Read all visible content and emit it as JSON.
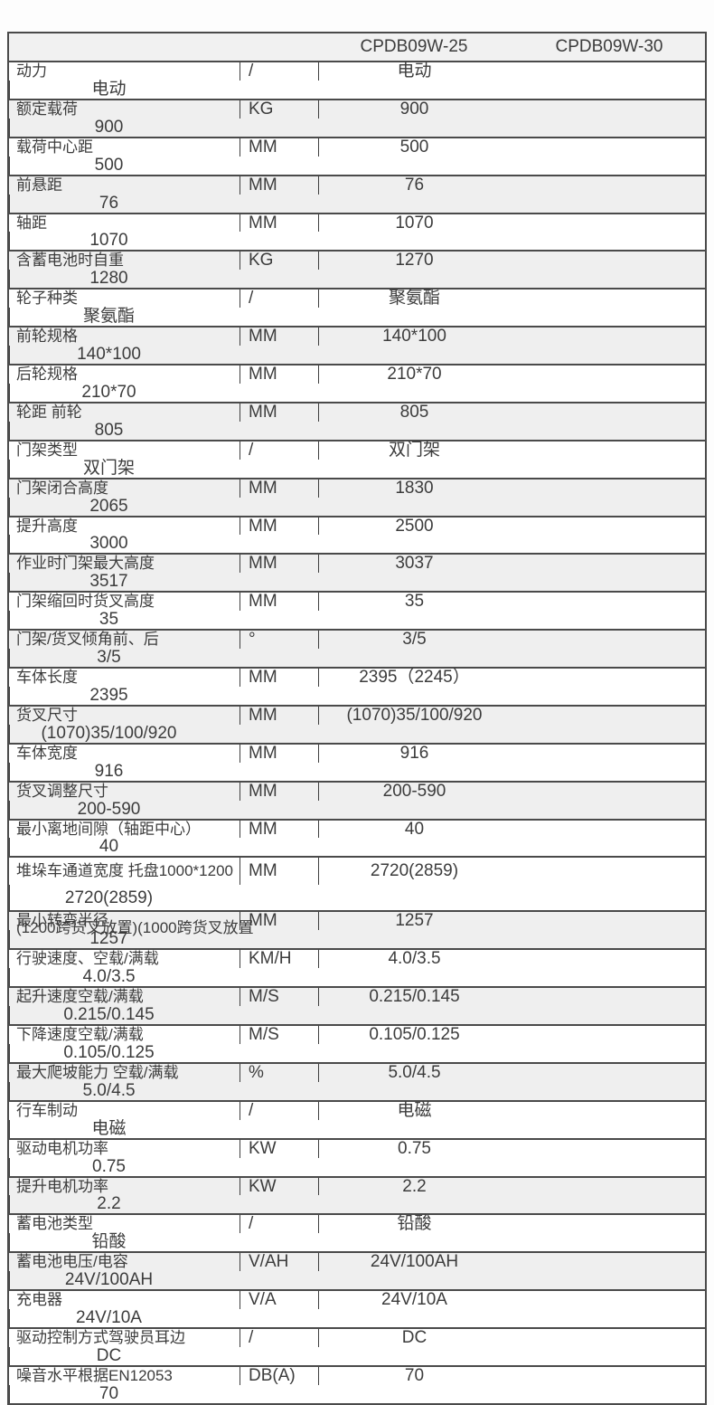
{
  "table": {
    "models": [
      "CPDB09W-25",
      "CPDB09W-30"
    ],
    "colors": {
      "border": "#4a4a4a",
      "shaded_row_bg": "#efefef",
      "header_row_bg": "#f1f1f1",
      "text": "#3c3c3c"
    },
    "rows": [
      {
        "label": "动力",
        "unit": "/",
        "values": [
          "电动",
          "电动"
        ],
        "shaded": false
      },
      {
        "label": "额定载荷",
        "unit": "KG",
        "values": [
          "900",
          "900"
        ],
        "shaded": true
      },
      {
        "label": "载荷中心距",
        "unit": "MM",
        "values": [
          "500",
          "500"
        ],
        "shaded": false
      },
      {
        "label": "前悬距",
        "unit": "MM",
        "values": [
          "76",
          "76"
        ],
        "shaded": true
      },
      {
        "label": "轴距",
        "unit": "MM",
        "values": [
          "1070",
          "1070"
        ],
        "shaded": false
      },
      {
        "label": "含蓄电池时自重",
        "unit": "KG",
        "values": [
          "1270",
          "1280"
        ],
        "shaded": true
      },
      {
        "label": "轮子种类",
        "unit": "/",
        "values": [
          "聚氨酯",
          "聚氨酯"
        ],
        "shaded": false
      },
      {
        "label": "前轮规格",
        "unit": "MM",
        "values": [
          "140*100",
          "140*100"
        ],
        "shaded": true
      },
      {
        "label": "后轮规格",
        "unit": "MM",
        "values": [
          "210*70",
          "210*70"
        ],
        "shaded": false
      },
      {
        "label": "轮距 前轮",
        "unit": "MM",
        "values": [
          "805",
          "805"
        ],
        "shaded": true
      },
      {
        "label": "门架类型",
        "unit": "/",
        "values": [
          "双门架",
          "双门架"
        ],
        "shaded": false
      },
      {
        "label": "门架闭合高度",
        "unit": "MM",
        "values": [
          "1830",
          "2065"
        ],
        "shaded": true
      },
      {
        "label": "提升高度",
        "unit": "MM",
        "values": [
          "2500",
          "3000"
        ],
        "shaded": false
      },
      {
        "label": "作业时门架最大高度",
        "unit": "MM",
        "values": [
          "3037",
          "3517"
        ],
        "shaded": true
      },
      {
        "label": "门架缩回时货叉高度",
        "unit": "MM",
        "values": [
          "35",
          "35"
        ],
        "shaded": false
      },
      {
        "label": "门架/货叉倾角前、后",
        "unit": "°",
        "values": [
          "3/5",
          "3/5"
        ],
        "shaded": true
      },
      {
        "label": "车体长度",
        "unit": "MM",
        "values": [
          "2395（2245）",
          "2395"
        ],
        "shaded": false
      },
      {
        "label": "货叉尺寸",
        "unit": "MM",
        "values": [
          "(1070)35/100/920",
          "(1070)35/100/920"
        ],
        "shaded": true
      },
      {
        "label": "车体宽度",
        "unit": "MM",
        "values": [
          "916",
          "916"
        ],
        "shaded": false
      },
      {
        "label": "货叉调整尺寸",
        "unit": "MM",
        "values": [
          "200-590",
          "200-590"
        ],
        "shaded": true
      },
      {
        "label": "最小离地间隙（轴距中心）",
        "unit": "MM",
        "values": [
          "40",
          "40"
        ],
        "shaded": false
      },
      {
        "label": "堆垛车通道宽度 托盘1000*1200",
        "label2": "(1200跨货叉放置)(1000跨货叉放置",
        "unit": "MM",
        "values": [
          "2720(2859)",
          "2720(2859)"
        ],
        "shaded": false,
        "tall": true
      },
      {
        "label": "最小转弯半径",
        "unit": "MM",
        "values": [
          "1257",
          "1257"
        ],
        "shaded": true
      },
      {
        "label": "行驶速度、空载/满载",
        "unit": "KM/H",
        "values": [
          "4.0/3.5",
          "4.0/3.5"
        ],
        "shaded": false
      },
      {
        "label": "起升速度空载/满载",
        "unit": "M/S",
        "values": [
          "0.215/0.145",
          "0.215/0.145"
        ],
        "shaded": true
      },
      {
        "label": "下降速度空载/满载",
        "unit": "M/S",
        "values": [
          "0.105/0.125",
          "0.105/0.125"
        ],
        "shaded": false
      },
      {
        "label": "最大爬坡能力 空载/满载",
        "unit": "%",
        "values": [
          "5.0/4.5",
          "5.0/4.5"
        ],
        "shaded": true
      },
      {
        "label": "行车制动",
        "unit": "/",
        "values": [
          "电磁",
          "电磁"
        ],
        "shaded": false
      },
      {
        "label": "驱动电机功率",
        "unit": "KW",
        "values": [
          "0.75",
          "0.75"
        ],
        "shaded": false
      },
      {
        "label": "提升电机功率",
        "unit": "KW",
        "values": [
          "2.2",
          "2.2"
        ],
        "shaded": true
      },
      {
        "label": "蓄电池类型",
        "unit": "/",
        "values": [
          "铅酸",
          "铅酸"
        ],
        "shaded": false
      },
      {
        "label": "蓄电池电压/电容",
        "unit": "V/AH",
        "values": [
          "24V/100AH",
          "24V/100AH"
        ],
        "shaded": true
      },
      {
        "label": "充电器",
        "unit": "V/A",
        "values": [
          "24V/10A",
          "24V/10A"
        ],
        "shaded": false
      },
      {
        "label": "驱动控制方式驾驶员耳边",
        "unit": "/",
        "values": [
          "DC",
          "DC"
        ],
        "shaded": false
      },
      {
        "label": "噪音水平根据EN12053",
        "unit": "DB(A)",
        "values": [
          "70",
          "70"
        ],
        "shaded": false
      }
    ]
  }
}
